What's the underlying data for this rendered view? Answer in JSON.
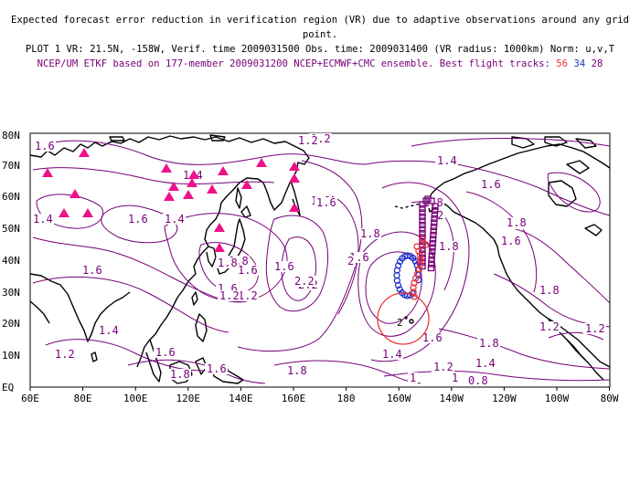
{
  "header": {
    "line1": "Expected forecast error reduction in verification region (VR) due to adaptive observations around any grid point.",
    "line2": "PLOT 1 VR: 21.5N, -158W, Verif. time 2009031500 Obs. time: 2009031400 (VR radius: 1000km) Norm: u,v,T",
    "line3": "NCEP/UM ETKF based on 177-member 2009031200 NCEP+ECMWF+CMC ensemble. Best flight tracks:",
    "tracks": [
      "56",
      "34",
      "28"
    ]
  },
  "map": {
    "lat_labels": [
      "80N",
      "70N",
      "60N",
      "50N",
      "40N",
      "30N",
      "20N",
      "10N",
      "EQ"
    ],
    "lon_labels": [
      "60E",
      "80E",
      "100E",
      "120E",
      "140E",
      "160E",
      "180",
      "160W",
      "140W",
      "120W",
      "100W",
      "80W"
    ],
    "contour_labels": [
      "1.6",
      "1.2",
      "1.4",
      "1.4",
      "1.4",
      "1.6",
      "1.4",
      "1.6",
      "1.8",
      "2",
      "1.8",
      "1.6",
      "1.6",
      "1.8",
      "1.4",
      "1.8",
      "1.2",
      "1.2",
      "1.6",
      "1.6",
      "1.4",
      "1.6",
      "1.6",
      "1.8",
      "2",
      "1.2",
      "1.6",
      "1.2",
      "1.8",
      "1.6",
      "1.8",
      "2",
      "2.2",
      "2.2",
      "1.8",
      "1.8",
      "1.4",
      "1.6",
      "1.6",
      "1.4",
      "1.2",
      "1.2",
      "1",
      "1",
      "0.8",
      "1.8",
      "1.2",
      "1.6",
      "1.8",
      "2"
    ],
    "verification_region_center": {
      "lat": 21.5,
      "lon": -158
    },
    "colors": {
      "contour": "#770077",
      "track56": "#ee3333",
      "track34": "#2233cc",
      "track28": "#770077",
      "raob": "#ee1188",
      "vr_circle": "#ee3333"
    }
  }
}
